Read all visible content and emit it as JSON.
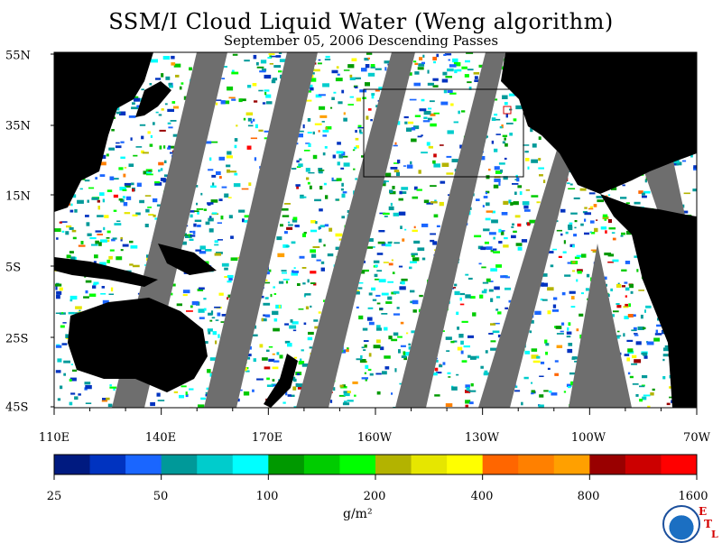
{
  "title": "SSM/I Cloud Liquid Water (Weng algorithm)",
  "subtitle": "September 05, 2006  Descending Passes",
  "lat_labels": [
    "55N",
    "35N",
    "15N",
    "5S",
    "25S",
    "45S"
  ],
  "lon_labels": [
    "110E",
    "140E",
    "170E",
    "160W",
    "130W",
    "100W",
    "70W"
  ],
  "colorbar": {
    "labels": [
      "25",
      "50",
      "100",
      "200",
      "400",
      "800",
      "1600"
    ],
    "units": "g/m²",
    "colors": [
      "#001a80",
      "#0033c0",
      "#1a66ff",
      "#009999",
      "#00cccc",
      "#00ffff",
      "#009900",
      "#00cc00",
      "#00ff00",
      "#b3b300",
      "#e6e600",
      "#ffff00",
      "#ff6600",
      "#ff8000",
      "#ffa000",
      "#990000",
      "#cc0000",
      "#ff0000"
    ]
  },
  "map_colors": {
    "land": "#000000",
    "no_data": "#6e6e6e",
    "no_cloud": "#ffffff"
  },
  "logo": {
    "name": "noaa-logo",
    "etl_letters": [
      "E",
      "T",
      "L"
    ]
  }
}
